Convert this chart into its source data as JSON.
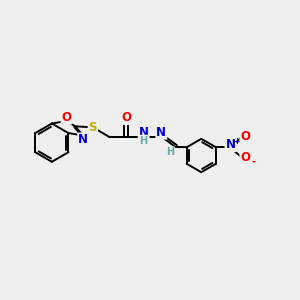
{
  "background_color": "#efefef",
  "bond_color": "#000000",
  "atom_colors": {
    "O": "#ff0000",
    "N": "#0000cc",
    "S": "#ccaa00",
    "H": "#66aaaa",
    "NO2_N": "#0000cc",
    "NO2_O": "#ff0000"
  },
  "figsize": [
    3.0,
    3.0
  ],
  "dpi": 100,
  "xlim": [
    0,
    12
  ],
  "ylim": [
    0,
    10
  ]
}
